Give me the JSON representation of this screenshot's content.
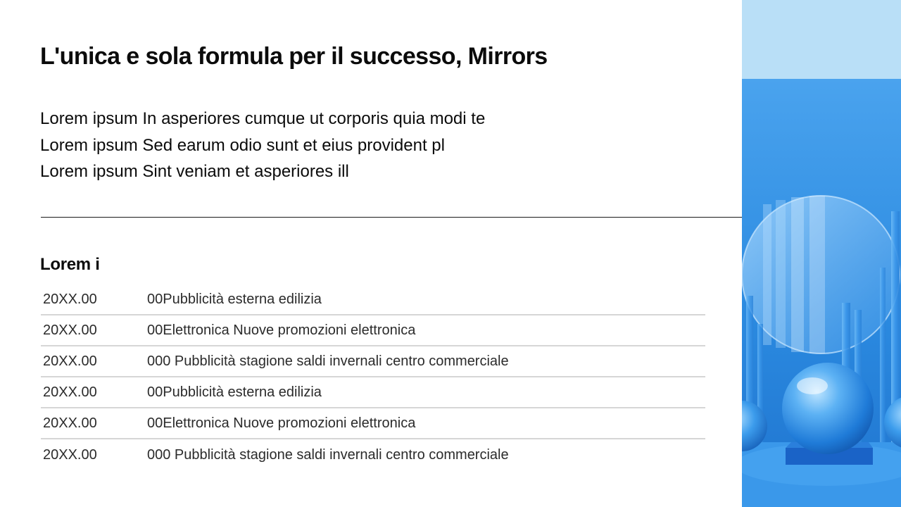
{
  "slide": {
    "title": "L'unica e sola formula per il successo, Mirrors",
    "body_lines": [
      "Lorem ipsum In asperiores cumque ut corporis quia modi te",
      "Lorem ipsum Sed earum odio sunt et eius provident pl",
      "Lorem ipsum Sint veniam et asperiores ill"
    ],
    "section_title": "Lorem i",
    "table_rows": [
      {
        "date": "20XX.00",
        "description": "00Pubblicità esterna edilizia"
      },
      {
        "date": "20XX.00",
        "description": "00Elettronica Nuove promozioni elettronica"
      },
      {
        "date": "20XX.00",
        "description": "000 Pubblicità stagione saldi invernali centro commerciale"
      },
      {
        "date": "20XX.00",
        "description": "00Pubblicità esterna edilizia"
      },
      {
        "date": "20XX.00",
        "description": "00Elettronica Nuove promozioni elettronica"
      },
      {
        "date": "20XX.00",
        "description": "000 Pubblicità stagione saldi invernali centro commerciale"
      }
    ]
  },
  "colors": {
    "panel_light_blue": "#b9dff7",
    "panel_blue": "#2f8fe0",
    "sphere_blue": "#3d9bea"
  }
}
